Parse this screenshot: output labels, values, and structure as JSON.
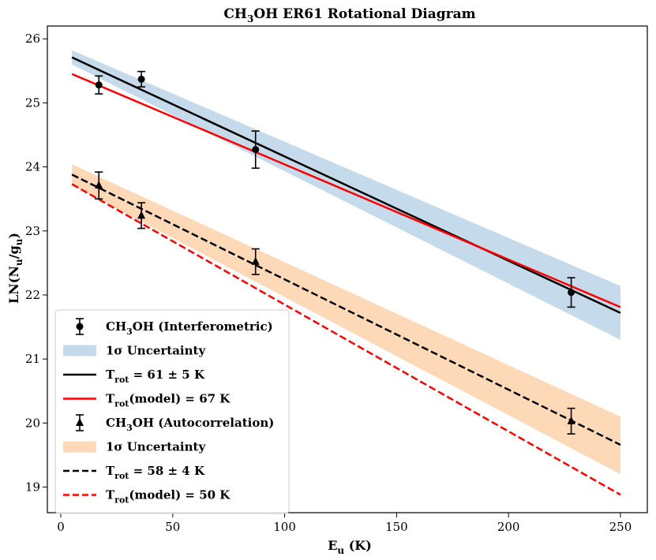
{
  "chart_data": {
    "type": "scatter",
    "title": "CH3OH ER61 Rotational Diagram",
    "title_parts": {
      "pre": "CH",
      "sub": "3",
      "post": "OH ER61 Rotational Diagram"
    },
    "xlabel": {
      "main": "E",
      "sub": "u",
      "post": " (K)"
    },
    "ylabel": {
      "pre": "LN(N",
      "sub1": "u",
      "mid": "/g",
      "sub2": "u",
      "post": ")"
    },
    "xlim": [
      -6,
      262
    ],
    "ylim": [
      18.6,
      26.2
    ],
    "xticks": [
      0,
      50,
      100,
      150,
      200,
      250
    ],
    "yticks": [
      19,
      20,
      21,
      22,
      23,
      24,
      25,
      26
    ],
    "grid": false,
    "legend_position": "lower-left",
    "series": [
      {
        "name": "CH3OH (Interferometric)",
        "kind": "points",
        "marker": "circle",
        "color": "#000000",
        "x": [
          17,
          36,
          87,
          228
        ],
        "y": [
          25.28,
          25.37,
          24.27,
          22.04
        ],
        "yerr": [
          0.14,
          0.12,
          0.29,
          0.23
        ]
      },
      {
        "name": "1σ Uncertainty",
        "kind": "band",
        "color": "#c5daeb",
        "x": [
          5,
          250
        ],
        "y_low": [
          25.6,
          21.3
        ],
        "y_high": [
          25.82,
          22.14
        ]
      },
      {
        "name": "T_rot = 61 ± 5 K",
        "kind": "line",
        "style": "solid",
        "color": "#000000",
        "x": [
          5,
          250
        ],
        "y": [
          25.71,
          21.72
        ]
      },
      {
        "name": "T_rot(model) = 67 K",
        "kind": "line",
        "style": "solid",
        "color": "#ff0000",
        "x": [
          5,
          250
        ],
        "y": [
          25.45,
          21.81
        ]
      },
      {
        "name": "CH3OH (Autocorrelation)",
        "kind": "points",
        "marker": "triangle",
        "color": "#000000",
        "x": [
          17,
          36,
          87,
          228
        ],
        "y": [
          23.71,
          23.24,
          22.52,
          20.03
        ],
        "yerr": [
          0.21,
          0.2,
          0.2,
          0.2
        ]
      },
      {
        "name": "1σ Uncertainty",
        "kind": "band",
        "color": "#fdd9b8",
        "x": [
          5,
          250
        ],
        "y_low": [
          23.72,
          19.2
        ],
        "y_high": [
          24.04,
          20.1
        ]
      },
      {
        "name": "T_rot = 58 ± 4 K",
        "kind": "line",
        "style": "dashed",
        "color": "#000000",
        "x": [
          5,
          250
        ],
        "y": [
          23.88,
          19.66
        ]
      },
      {
        "name": "T_rot(model) = 50 K",
        "kind": "line",
        "style": "dashed",
        "color": "#ff0000",
        "x": [
          5,
          250
        ],
        "y": [
          23.73,
          18.88
        ]
      }
    ],
    "legend": [
      {
        "symbol": "errpoint-circle",
        "main": "CH",
        "sub": "3",
        "post": "OH (Interferometric)"
      },
      {
        "symbol": "band-blue",
        "main": "1σ Uncertainty",
        "sub": "",
        "post": ""
      },
      {
        "symbol": "line-black-solid",
        "main": "T",
        "sub": "rot",
        "post": " = 61 ± 5 K"
      },
      {
        "symbol": "line-red-solid",
        "main": "T",
        "sub": "rot",
        "post": "(model) = 67 K"
      },
      {
        "symbol": "errpoint-triangle",
        "main": "CH",
        "sub": "3",
        "post": "OH (Autocorrelation)"
      },
      {
        "symbol": "band-orange",
        "main": "1σ Uncertainty",
        "sub": "",
        "post": ""
      },
      {
        "symbol": "line-black-dashed",
        "main": "T",
        "sub": "rot",
        "post": " = 58 ± 4 K"
      },
      {
        "symbol": "line-red-dashed",
        "main": "T",
        "sub": "rot",
        "post": "(model) = 50 K"
      }
    ]
  }
}
